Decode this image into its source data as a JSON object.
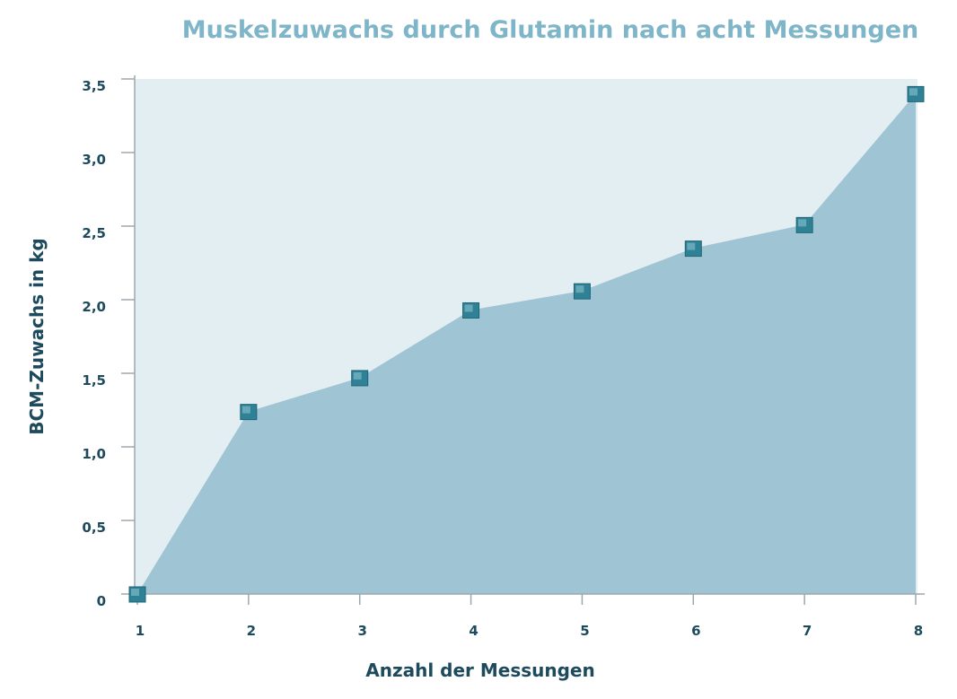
{
  "chart_data": {
    "type": "area",
    "title": "Muskelzuwachs durch Glutamin nach acht Messungen",
    "xlabel": "Anzahl der Messungen",
    "ylabel": "BCM-Zuwachs in kg",
    "x": [
      1,
      2,
      3,
      4,
      5,
      6,
      7,
      8
    ],
    "x_tick_labels": [
      "1",
      "2",
      "3",
      "4",
      "5",
      "6",
      "7",
      "8"
    ],
    "y": [
      0,
      1.24,
      1.47,
      1.93,
      2.06,
      2.35,
      2.51,
      3.4
    ],
    "ylim": [
      0,
      3.5
    ],
    "y_ticks": [
      0,
      0.5,
      1.0,
      1.5,
      2.0,
      2.5,
      3.0,
      3.5
    ],
    "y_tick_labels": [
      "0",
      "0,5",
      "1,0",
      "1,5",
      "2,0",
      "2,5",
      "3,0",
      "3,5"
    ],
    "grid": false,
    "markers": "square",
    "colors": {
      "title": "#7fb5c8",
      "plot_background": "#e3eef3",
      "area_fill": "#9fc4d4",
      "marker": "#2f8296",
      "axis_text": "#1d4a5c"
    }
  }
}
